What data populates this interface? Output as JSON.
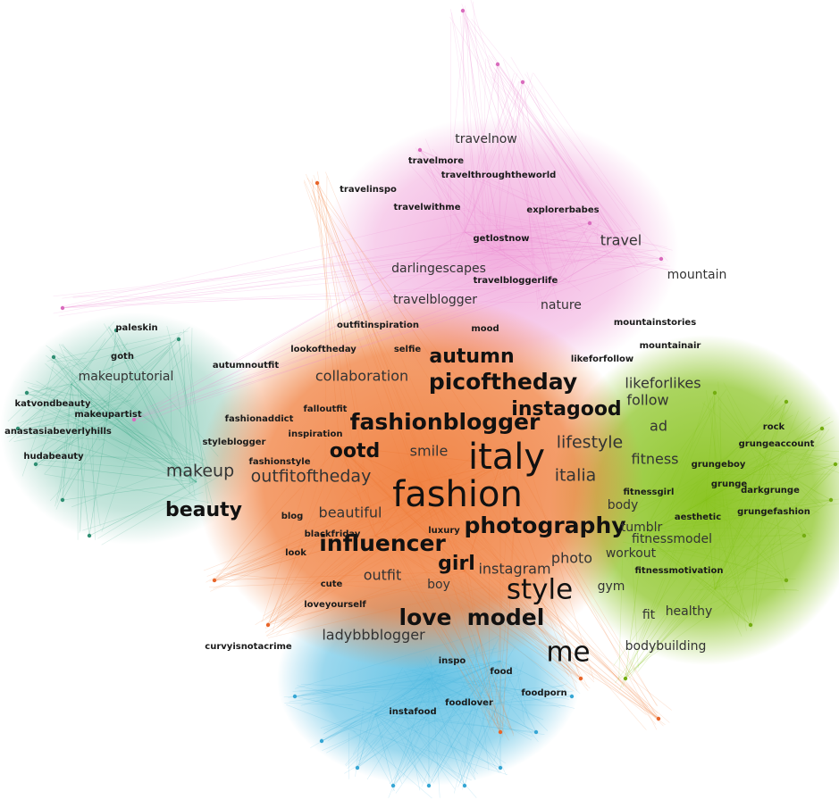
{
  "graph": {
    "clusters": [
      {
        "name": "fashion",
        "color": "#f07e3c",
        "node": "#e8652a"
      },
      {
        "name": "travel",
        "color": "#ec8ad0",
        "node": "#d96bbd"
      },
      {
        "name": "fitness",
        "color": "#86c21a",
        "node": "#74ad10"
      },
      {
        "name": "beauty",
        "color": "#3aa888",
        "node": "#2f8f73"
      },
      {
        "name": "food",
        "color": "#4ab8e0",
        "node": "#35a6d4"
      }
    ],
    "labels": [
      {
        "text": "italy",
        "cluster": "fashion",
        "weight": 9
      },
      {
        "text": "fashion",
        "cluster": "fashion",
        "weight": 9
      },
      {
        "text": "style",
        "cluster": "fashion",
        "weight": 7
      },
      {
        "text": "love",
        "cluster": "fashion",
        "weight": 6
      },
      {
        "text": "model",
        "cluster": "fashion",
        "weight": 6
      },
      {
        "text": "me",
        "cluster": "food",
        "weight": 7
      },
      {
        "text": "photography",
        "cluster": "fashion",
        "weight": 6
      },
      {
        "text": "influencer",
        "cluster": "fashion",
        "weight": 6
      },
      {
        "text": "fashionblogger",
        "cluster": "fashion",
        "weight": 6
      },
      {
        "text": "picoftheday",
        "cluster": "fashion",
        "weight": 6
      },
      {
        "text": "autumn",
        "cluster": "fashion",
        "weight": 5
      },
      {
        "text": "instagood",
        "cluster": "fashion",
        "weight": 5
      },
      {
        "text": "ootd",
        "cluster": "fashion",
        "weight": 5
      },
      {
        "text": "girl",
        "cluster": "fashion",
        "weight": 5
      },
      {
        "text": "beauty",
        "cluster": "beauty",
        "weight": 5
      },
      {
        "text": "makeup",
        "cluster": "beauty",
        "weight": 4
      },
      {
        "text": "outfitoftheday",
        "cluster": "fashion",
        "weight": 4
      },
      {
        "text": "lifestyle",
        "cluster": "fashion",
        "weight": 4
      },
      {
        "text": "italia",
        "cluster": "fashion",
        "weight": 4
      },
      {
        "text": "smile",
        "cluster": "fashion",
        "weight": 3
      },
      {
        "text": "beautiful",
        "cluster": "fashion",
        "weight": 3
      },
      {
        "text": "outfit",
        "cluster": "fashion",
        "weight": 3
      },
      {
        "text": "photo",
        "cluster": "fashion",
        "weight": 3
      },
      {
        "text": "instagram",
        "cluster": "fashion",
        "weight": 3
      },
      {
        "text": "ladybbblogger",
        "cluster": "food",
        "weight": 3
      },
      {
        "text": "collaboration",
        "cluster": "fashion",
        "weight": 3
      },
      {
        "text": "likeforlikes",
        "cluster": "fitness",
        "weight": 3
      },
      {
        "text": "follow",
        "cluster": "fitness",
        "weight": 3
      },
      {
        "text": "ad",
        "cluster": "fitness",
        "weight": 3
      },
      {
        "text": "fitness",
        "cluster": "fitness",
        "weight": 3
      },
      {
        "text": "body",
        "cluster": "fitness",
        "weight": 2
      },
      {
        "text": "tumblr",
        "cluster": "fitness",
        "weight": 2
      },
      {
        "text": "fitnessmodel",
        "cluster": "fitness",
        "weight": 2
      },
      {
        "text": "workout",
        "cluster": "fitness",
        "weight": 2
      },
      {
        "text": "gym",
        "cluster": "fitness",
        "weight": 2
      },
      {
        "text": "fit",
        "cluster": "fitness",
        "weight": 2
      },
      {
        "text": "healthy",
        "cluster": "fitness",
        "weight": 2
      },
      {
        "text": "bodybuilding",
        "cluster": "fitness",
        "weight": 2
      },
      {
        "text": "travel",
        "cluster": "travel",
        "weight": 3
      },
      {
        "text": "mountain",
        "cluster": "travel",
        "weight": 2
      },
      {
        "text": "nature",
        "cluster": "travel",
        "weight": 2
      },
      {
        "text": "travelblogger",
        "cluster": "travel",
        "weight": 2
      },
      {
        "text": "darlingescapes",
        "cluster": "travel",
        "weight": 2
      },
      {
        "text": "travelnow",
        "cluster": "travel",
        "weight": 2
      },
      {
        "text": "makeuptutorial",
        "cluster": "beauty",
        "weight": 2
      },
      {
        "text": "boy",
        "cluster": "fashion",
        "weight": 2
      },
      {
        "text": "food",
        "cluster": "food",
        "weight": 1
      },
      {
        "text": "travelmore",
        "cluster": "travel",
        "weight": 1
      },
      {
        "text": "travelthroughtheworld",
        "cluster": "travel",
        "weight": 1
      },
      {
        "text": "travelinspo",
        "cluster": "travel",
        "weight": 1
      },
      {
        "text": "travelwithme",
        "cluster": "travel",
        "weight": 1
      },
      {
        "text": "explorerbabes",
        "cluster": "travel",
        "weight": 1
      },
      {
        "text": "getlostnow",
        "cluster": "travel",
        "weight": 1
      },
      {
        "text": "travelbloggerlife",
        "cluster": "travel",
        "weight": 1
      },
      {
        "text": "mountainstories",
        "cluster": "travel",
        "weight": 1
      },
      {
        "text": "mountainair",
        "cluster": "travel",
        "weight": 1
      },
      {
        "text": "likeforfollow",
        "cluster": "travel",
        "weight": 1
      },
      {
        "text": "mood",
        "cluster": "travel",
        "weight": 1
      },
      {
        "text": "outfitinspiration",
        "cluster": "fashion",
        "weight": 1
      },
      {
        "text": "lookoftheday",
        "cluster": "fashion",
        "weight": 1
      },
      {
        "text": "selfie",
        "cluster": "fashion",
        "weight": 1
      },
      {
        "text": "autumnoutfit",
        "cluster": "fashion",
        "weight": 1
      },
      {
        "text": "paleskin",
        "cluster": "beauty",
        "weight": 1
      },
      {
        "text": "goth",
        "cluster": "beauty",
        "weight": 1
      },
      {
        "text": "katvondbeauty",
        "cluster": "beauty",
        "weight": 1
      },
      {
        "text": "makeupartist",
        "cluster": "beauty",
        "weight": 1
      },
      {
        "text": "anastasiabeverlyhills",
        "cluster": "beauty",
        "weight": 1
      },
      {
        "text": "hudabeauty",
        "cluster": "beauty",
        "weight": 1
      },
      {
        "text": "fashionaddict",
        "cluster": "fashion",
        "weight": 1
      },
      {
        "text": "falloutfit",
        "cluster": "fashion",
        "weight": 1
      },
      {
        "text": "inspiration",
        "cluster": "fashion",
        "weight": 1
      },
      {
        "text": "styleblogger",
        "cluster": "fashion",
        "weight": 1
      },
      {
        "text": "fashionstyle",
        "cluster": "fashion",
        "weight": 1
      },
      {
        "text": "blog",
        "cluster": "fashion",
        "weight": 1
      },
      {
        "text": "blackfriday",
        "cluster": "fashion",
        "weight": 1
      },
      {
        "text": "look",
        "cluster": "fashion",
        "weight": 1
      },
      {
        "text": "luxury",
        "cluster": "fashion",
        "weight": 1
      },
      {
        "text": "cute",
        "cluster": "fashion",
        "weight": 1
      },
      {
        "text": "loveyourself",
        "cluster": "food",
        "weight": 1
      },
      {
        "text": "curvyisnotacrime",
        "cluster": "fashion",
        "weight": 1
      },
      {
        "text": "inspo",
        "cluster": "food",
        "weight": 1
      },
      {
        "text": "foodlover",
        "cluster": "food",
        "weight": 1
      },
      {
        "text": "foodporn",
        "cluster": "food",
        "weight": 1
      },
      {
        "text": "instafood",
        "cluster": "food",
        "weight": 1
      },
      {
        "text": "rock",
        "cluster": "fitness",
        "weight": 1
      },
      {
        "text": "grungeaccount",
        "cluster": "fitness",
        "weight": 1
      },
      {
        "text": "grungeboy",
        "cluster": "fitness",
        "weight": 1
      },
      {
        "text": "grunge",
        "cluster": "fitness",
        "weight": 1
      },
      {
        "text": "darkgrunge",
        "cluster": "fitness",
        "weight": 1
      },
      {
        "text": "grungefashion",
        "cluster": "fitness",
        "weight": 1
      },
      {
        "text": "fitnessgirl",
        "cluster": "fitness",
        "weight": 1
      },
      {
        "text": "aesthetic",
        "cluster": "fitness",
        "weight": 1
      },
      {
        "text": "fitnessmotivation",
        "cluster": "fitness",
        "weight": 1
      }
    ]
  }
}
